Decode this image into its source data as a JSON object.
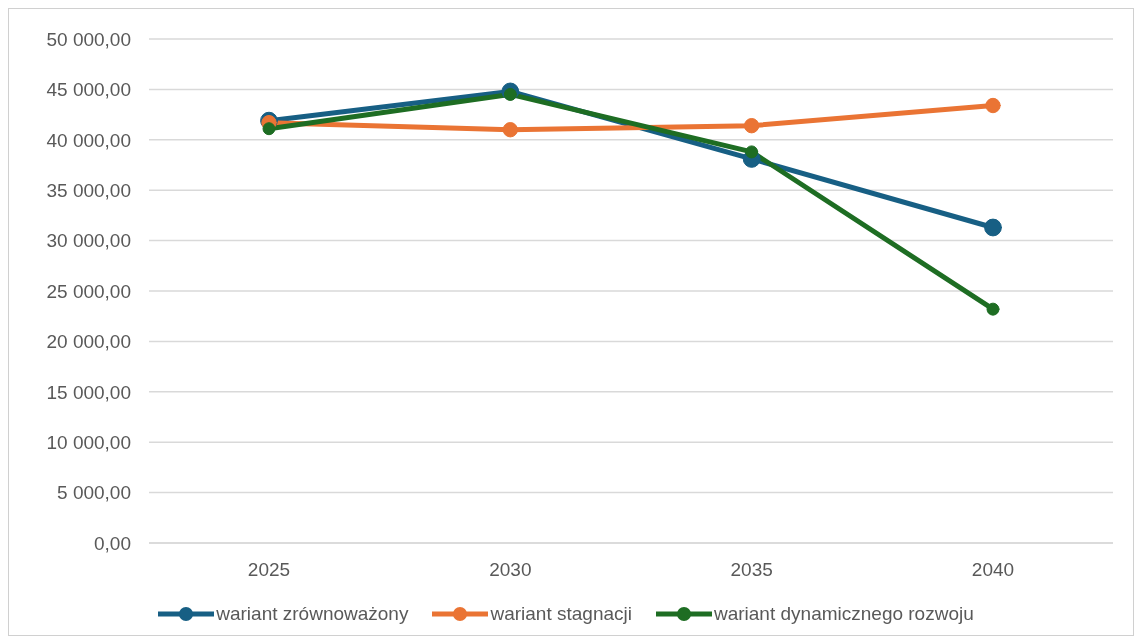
{
  "chart_data": {
    "type": "line",
    "categories": [
      "2025",
      "2030",
      "2035",
      "2040"
    ],
    "series": [
      {
        "name": "wariant zrównoważony",
        "color": "#175f84",
        "values": [
          41900,
          44800,
          38100,
          31300
        ]
      },
      {
        "name": "wariant stagnacji",
        "color": "#ea7434",
        "values": [
          41700,
          41000,
          41400,
          43400
        ]
      },
      {
        "name": "wariant dynamicznego rozwoju",
        "color": "#1e6d23",
        "values": [
          41100,
          44500,
          38800,
          23200
        ]
      }
    ],
    "ylim": [
      0,
      50000
    ],
    "yticks": [
      {
        "value": 0,
        "label": "0,00"
      },
      {
        "value": 5000,
        "label": "5 000,00"
      },
      {
        "value": 10000,
        "label": "10 000,00"
      },
      {
        "value": 15000,
        "label": "15 000,00"
      },
      {
        "value": 20000,
        "label": "20 000,00"
      },
      {
        "value": 25000,
        "label": "25 000,00"
      },
      {
        "value": 30000,
        "label": "30 000,00"
      },
      {
        "value": 35000,
        "label": "35 000,00"
      },
      {
        "value": 40000,
        "label": "40 000,00"
      },
      {
        "value": 45000,
        "label": "45 000,00"
      },
      {
        "value": 50000,
        "label": "50 000,00"
      }
    ],
    "grid": "y",
    "legend": "bottom",
    "marker": "circle",
    "line_style": "solid"
  }
}
